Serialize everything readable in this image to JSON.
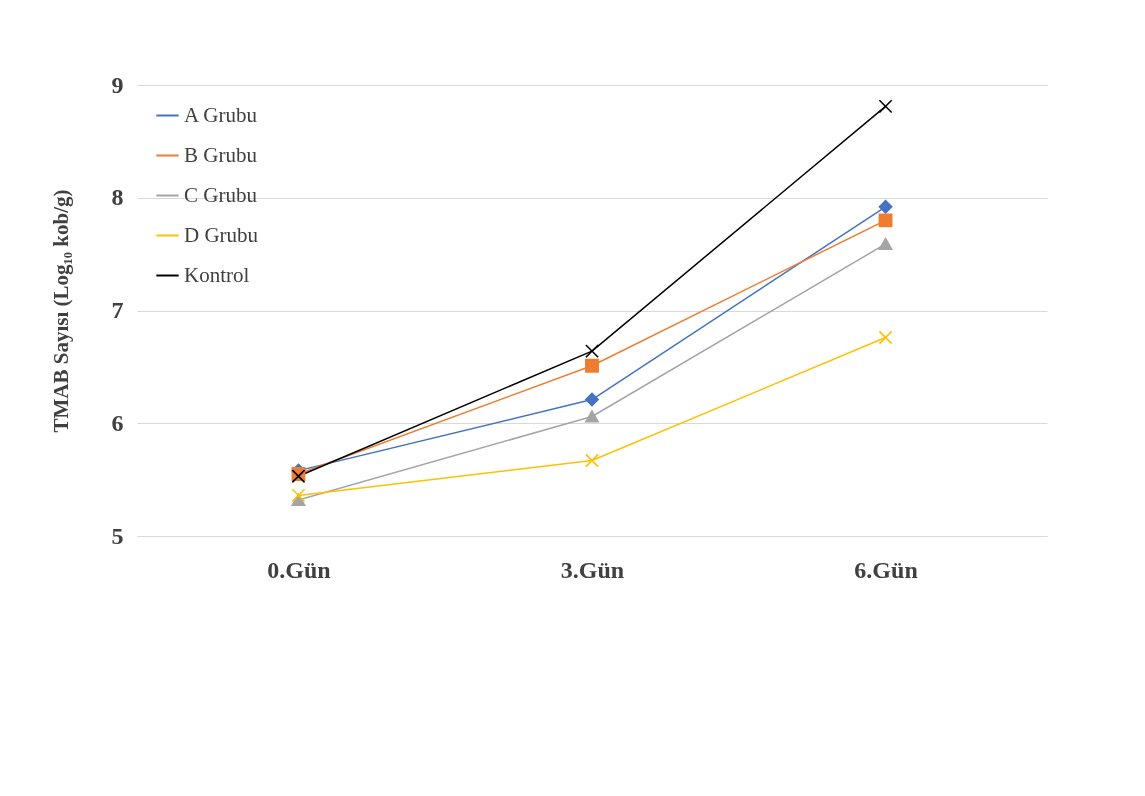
{
  "chart_data": {
    "type": "line",
    "ylabel": "TMAB  Sayısı (Log₁₀ kob/g)",
    "categories": [
      "0.Gün",
      "3.Gün",
      "6.Gün"
    ],
    "series": [
      {
        "name": "A Grubu",
        "color": "#4472c4",
        "marker": "diamond",
        "values": [
          5.58,
          6.21,
          7.92
        ]
      },
      {
        "name": "B Grubu",
        "color": "#ed7d31",
        "marker": "square",
        "values": [
          5.55,
          6.51,
          7.8
        ]
      },
      {
        "name": "C Grubu",
        "color": "#a5a5a5",
        "marker": "triangle",
        "values": [
          5.32,
          6.06,
          7.59
        ]
      },
      {
        "name": "D Grubu",
        "color": "#ffc000",
        "marker": "cross",
        "values": [
          5.36,
          5.67,
          6.76
        ]
      },
      {
        "name": "Kontrol",
        "color": "#000000",
        "marker": "cross",
        "values": [
          5.53,
          6.64,
          8.81
        ]
      }
    ],
    "ylim": [
      5,
      9
    ],
    "yticks": [
      5,
      6,
      7,
      8,
      9
    ],
    "grid": "y",
    "legend": "top left",
    "line_style": "solid"
  }
}
